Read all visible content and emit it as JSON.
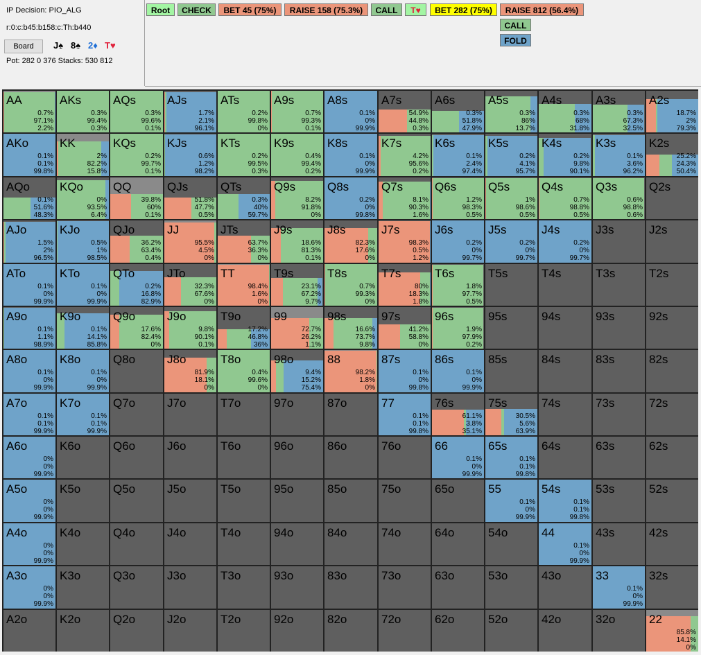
{
  "info": {
    "decision": "IP Decision:  PIO_ALG",
    "line": "r:0:c:b45:b158:c:Th:b440",
    "board_button": "Board",
    "board_cards": [
      {
        "text": "J♠",
        "color": "#000000"
      },
      {
        "text": "8♠",
        "color": "#000000"
      },
      {
        "text": "2♦",
        "color": "#1f6fd6"
      },
      {
        "text": "T♥",
        "color": "#e0203a"
      }
    ],
    "pot_stacks": "Pot: 282 0 376 Stacks: 530 812"
  },
  "tree": [
    {
      "label": "Root",
      "color": "#a3f5a3"
    },
    {
      "label": "CHECK",
      "color": "#90c890"
    },
    {
      "label": "BET 45 (75%)",
      "color": "#eb957a"
    },
    {
      "label": "RAISE 158 (75.3%)",
      "color": "#eb957a"
    },
    {
      "label": "CALL",
      "color": "#90c890"
    },
    {
      "label": "T♥",
      "color": "#a3f5a3"
    },
    {
      "label": "BET 282 (75%)",
      "color": "#ffff00"
    },
    {
      "label": "RAISE 812 (56.4%)",
      "color": "#eb957a"
    },
    {
      "label": "CALL",
      "color": "#90c890"
    },
    {
      "label": "FOLD",
      "color": "#6fa3c9"
    }
  ],
  "colors": {
    "raise": "#eb957a",
    "call": "#90c890",
    "fold": "#6fa3c9",
    "cell_bg": "#5f5f5f",
    "pair_bg": "#8a8a8a",
    "grid_line": "#222222"
  },
  "ranks": [
    "A",
    "K",
    "Q",
    "J",
    "T",
    "9",
    "8",
    "7",
    "6",
    "5",
    "4",
    "3",
    "2"
  ],
  "cells": {
    "AA": [
      "0.7%",
      "97.1%",
      "2.2%"
    ],
    "AKs": [
      "0.3%",
      "99.4%",
      "0.3%"
    ],
    "AQs": [
      "0.3%",
      "99.6%",
      "0.1%"
    ],
    "AJs": [
      "1.7%",
      "2.1%",
      "96.1%"
    ],
    "ATs": [
      "0.2%",
      "99.8%",
      "0%"
    ],
    "A9s": [
      "0.7%",
      "99.3%",
      "0.1%"
    ],
    "A8s": [
      "0.1%",
      "0%",
      "99.9%"
    ],
    "A7s": [
      "54.9%",
      "44.8%",
      "0.3%"
    ],
    "A6s": [
      "0.3%",
      "51.8%",
      "47.9%"
    ],
    "A5s": [
      "0.3%",
      "86%",
      "13.7%"
    ],
    "A4s": [
      "0.3%",
      "68%",
      "31.8%"
    ],
    "A3s": [
      "0.3%",
      "67.3%",
      "32.5%"
    ],
    "A2s": [
      "18.7%",
      "2%",
      "79.3%"
    ],
    "AKo": [
      "0.1%",
      "0.1%",
      "99.8%"
    ],
    "KK": [
      "2%",
      "82.2%",
      "15.8%"
    ],
    "KQs": [
      "0.2%",
      "99.7%",
      "0.1%"
    ],
    "KJs": [
      "0.6%",
      "1.2%",
      "98.2%"
    ],
    "KTs": [
      "0.2%",
      "99.5%",
      "0.3%"
    ],
    "K9s": [
      "0.4%",
      "99.4%",
      "0.2%"
    ],
    "K8s": [
      "0.1%",
      "0%",
      "99.9%"
    ],
    "K7s": [
      "4.2%",
      "95.6%",
      "0.2%"
    ],
    "K6s": [
      "0.1%",
      "2.4%",
      "97.4%"
    ],
    "K5s": [
      "0.2%",
      "4.1%",
      "95.7%"
    ],
    "K4s": [
      "0.2%",
      "9.8%",
      "90.1%"
    ],
    "K3s": [
      "0.1%",
      "3.6%",
      "96.2%"
    ],
    "K2s": [
      "25.2%",
      "24.3%",
      "50.4%"
    ],
    "AQo": [
      "0.1%",
      "51.6%",
      "48.3%"
    ],
    "KQo": [
      "0%",
      "93.5%",
      "6.4%"
    ],
    "QQ": [
      "39.8%",
      "60%",
      "0.1%"
    ],
    "QJs": [
      "51.8%",
      "47.7%",
      "0.5%"
    ],
    "QTs": [
      "0.3%",
      "40%",
      "59.7%"
    ],
    "Q9s": [
      "8.2%",
      "91.8%",
      "0%"
    ],
    "Q8s": [
      "0.2%",
      "0%",
      "99.8%"
    ],
    "Q7s": [
      "8.1%",
      "90.3%",
      "1.6%"
    ],
    "Q6s": [
      "1.2%",
      "98.3%",
      "0.5%"
    ],
    "Q5s": [
      "1%",
      "98.6%",
      "0.5%"
    ],
    "Q4s": [
      "0.7%",
      "98.8%",
      "0.5%"
    ],
    "Q3s": [
      "0.6%",
      "98.8%",
      "0.6%"
    ],
    "AJo": [
      "1.5%",
      "2%",
      "96.5%"
    ],
    "KJo": [
      "0.5%",
      "1%",
      "98.5%"
    ],
    "QJo": [
      "36.2%",
      "63.4%",
      "0.4%"
    ],
    "JJ": [
      "95.5%",
      "4.5%",
      "0%"
    ],
    "JTs": [
      "63.7%",
      "36.3%",
      "0%"
    ],
    "J9s": [
      "18.6%",
      "81.3%",
      "0.1%"
    ],
    "J8s": [
      "82.3%",
      "17.6%",
      "0%"
    ],
    "J7s": [
      "98.3%",
      "0.5%",
      "1.2%"
    ],
    "J6s": [
      "0.2%",
      "0%",
      "99.7%"
    ],
    "J5s": [
      "0.2%",
      "0%",
      "99.7%"
    ],
    "J4s": [
      "0.2%",
      "0%",
      "99.7%"
    ],
    "ATo": [
      "0.1%",
      "0%",
      "99.9%"
    ],
    "KTo": [
      "0.1%",
      "0%",
      "99.9%"
    ],
    "QTo": [
      "0.2%",
      "16.8%",
      "82.9%"
    ],
    "JTo": [
      "32.3%",
      "67.6%",
      "0%"
    ],
    "TT": [
      "98.4%",
      "1.6%",
      "0%"
    ],
    "T9s": [
      "23.1%",
      "67.2%",
      "9.7%"
    ],
    "T8s": [
      "0.7%",
      "99.3%",
      "0%"
    ],
    "T7s": [
      "80%",
      "18.3%",
      "1.8%"
    ],
    "T6s": [
      "1.8%",
      "97.7%",
      "0.5%"
    ],
    "A9o": [
      "0.1%",
      "1.1%",
      "98.9%"
    ],
    "K9o": [
      "0.1%",
      "14.1%",
      "85.8%"
    ],
    "Q9o": [
      "17.6%",
      "82.4%",
      "0%"
    ],
    "J9o": [
      "9.8%",
      "90.1%",
      "0.1%"
    ],
    "T9o": [
      "17.2%",
      "46.8%",
      "36%"
    ],
    "99": [
      "72.7%",
      "26.2%",
      "1.1%"
    ],
    "98s": [
      "16.6%",
      "73.7%",
      "9.8%"
    ],
    "97s": [
      "41.2%",
      "58.8%",
      "0%"
    ],
    "96s": [
      "1.9%",
      "97.9%",
      "0.2%"
    ],
    "A8o": [
      "0.1%",
      "0%",
      "99.9%"
    ],
    "K8o": [
      "0.1%",
      "0%",
      "99.9%"
    ],
    "J8o": [
      "81.9%",
      "18.1%",
      "0%"
    ],
    "T8o": [
      "0.4%",
      "99.6%",
      "0%"
    ],
    "98o": [
      "9.4%",
      "15.2%",
      "75.4%"
    ],
    "88": [
      "98.2%",
      "1.8%",
      "0%"
    ],
    "87s": [
      "0.1%",
      "0%",
      "99.8%"
    ],
    "86s": [
      "0.1%",
      "0%",
      "99.9%"
    ],
    "A7o": [
      "0.1%",
      "0.1%",
      "99.9%"
    ],
    "K7o": [
      "0.1%",
      "0.1%",
      "99.9%"
    ],
    "77": [
      "0.1%",
      "0.1%",
      "99.8%"
    ],
    "76s": [
      "61.1%",
      "3.8%",
      "35.1%"
    ],
    "75s": [
      "30.5%",
      "5.6%",
      "63.9%"
    ],
    "A6o": [
      "0%",
      "0%",
      "99.9%"
    ],
    "66": [
      "0.1%",
      "0%",
      "99.9%"
    ],
    "65s": [
      "0.1%",
      "0.1%",
      "99.8%"
    ],
    "A5o": [
      "0%",
      "0%",
      "99.9%"
    ],
    "55": [
      "0.1%",
      "0%",
      "99.9%"
    ],
    "54s": [
      "0.1%",
      "0.1%",
      "99.8%"
    ],
    "A4o": [
      "0%",
      "0%",
      "99.9%"
    ],
    "44": [
      "0.1%",
      "0%",
      "99.9%"
    ],
    "A3o": [
      "0%",
      "0%",
      "99.9%"
    ],
    "33": [
      "0.1%",
      "0%",
      "99.9%"
    ],
    "22": [
      "85.8%",
      "14.1%",
      "0%"
    ]
  }
}
